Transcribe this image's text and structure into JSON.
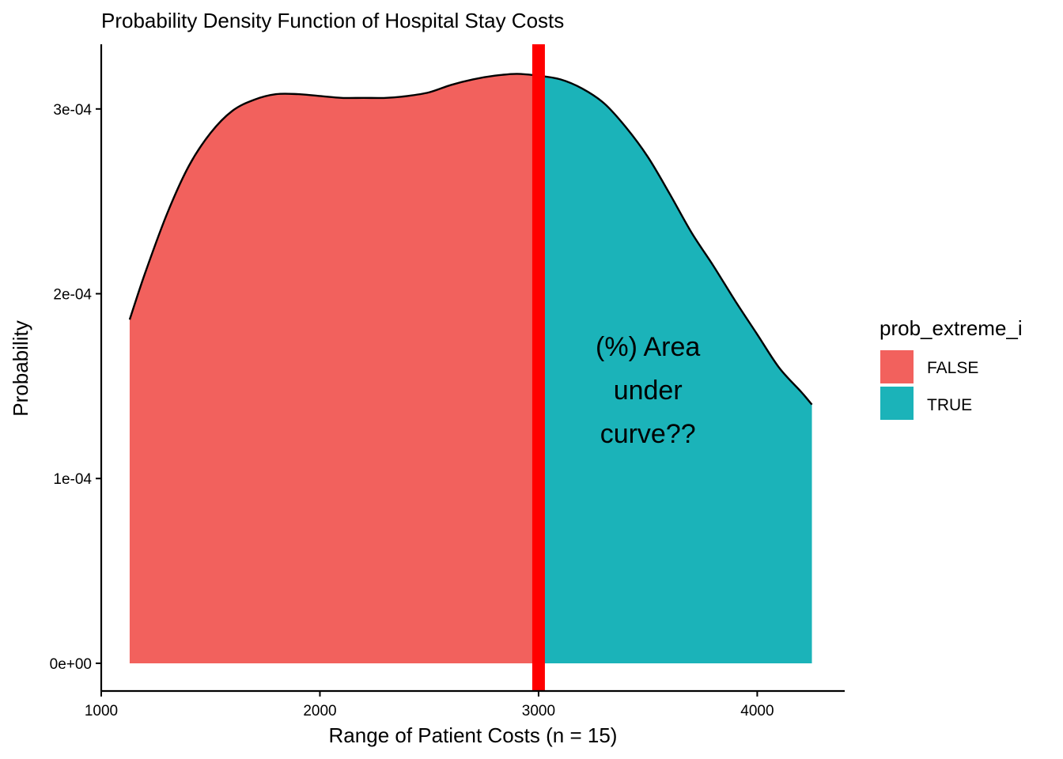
{
  "chart_data": {
    "type": "area",
    "title": "Probability Density Function of Hospital Stay Costs",
    "xlabel": "Range of Patient Costs (n = 15)",
    "ylabel": "Probability",
    "xlim": [
      1000,
      4400
    ],
    "ylim": [
      -1.5e-05,
      0.000335
    ],
    "x_ticks": [
      1000,
      2000,
      3000,
      4000
    ],
    "x_tick_labels": [
      "1000",
      "2000",
      "3000",
      "4000"
    ],
    "y_ticks": [
      0,
      0.0001,
      0.0002,
      0.0003
    ],
    "y_tick_labels": [
      "0e+00",
      "1e-04",
      "2e-04",
      "3e-04"
    ],
    "grid": false,
    "legend": {
      "title": "prob_extreme_i",
      "position": "right",
      "entries": [
        {
          "label": "FALSE",
          "color": "#F2615D"
        },
        {
          "label": "TRUE",
          "color": "#1BB3B9"
        }
      ]
    },
    "threshold": {
      "x": 3000,
      "color": "#FF0000"
    },
    "annotation": {
      "lines": [
        "(%) Area",
        "under",
        "curve??"
      ],
      "x": 3500,
      "y": 0.000148
    },
    "curve": {
      "x": [
        1130,
        1200,
        1300,
        1400,
        1500,
        1600,
        1700,
        1800,
        1900,
        2000,
        2100,
        2200,
        2300,
        2400,
        2500,
        2600,
        2700,
        2800,
        2900,
        3000,
        3100,
        3200,
        3300,
        3400,
        3500,
        3600,
        3700,
        3800,
        3900,
        4000,
        4100,
        4200,
        4250
      ],
      "y": [
        0.000186,
        0.000211,
        0.000243,
        0.000269,
        0.000287,
        0.000299,
        0.000305,
        0.000308,
        0.000308,
        0.000307,
        0.000306,
        0.000306,
        0.000306,
        0.000307,
        0.000309,
        0.000313,
        0.000316,
        0.000318,
        0.000319,
        0.000318,
        0.000316,
        0.000311,
        0.000303,
        0.00029,
        0.000274,
        0.000254,
        0.000233,
        0.000215,
        0.000196,
        0.000178,
        0.00016,
        0.000147,
        0.00014
      ]
    },
    "series": [
      {
        "name": "FALSE",
        "x_range": [
          1130,
          3000
        ],
        "color": "#F2615D"
      },
      {
        "name": "TRUE",
        "x_range": [
          3000,
          4250
        ],
        "color": "#1BB3B9"
      }
    ]
  }
}
